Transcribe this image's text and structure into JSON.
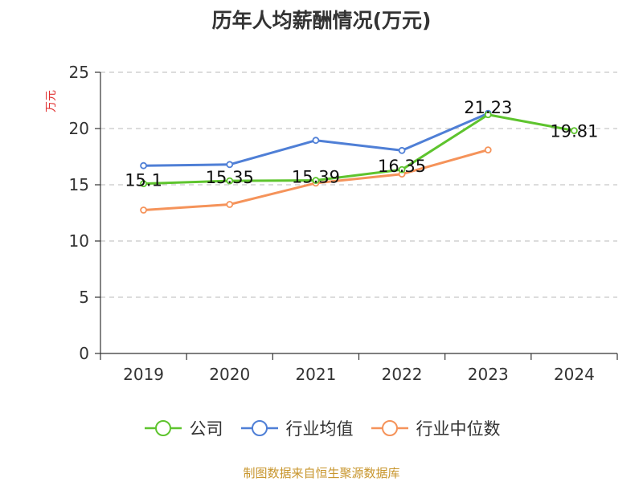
{
  "chart_data": {
    "type": "line",
    "title": "历年人均薪酬情况(万元)",
    "y_unit": "万元",
    "categories": [
      "2019",
      "2020",
      "2021",
      "2022",
      "2023",
      "2024"
    ],
    "ylim": [
      0,
      25
    ],
    "yticks": [
      "0",
      "5",
      "10",
      "15",
      "20",
      "25"
    ],
    "grid": true,
    "legend_position": "bottom",
    "series": [
      {
        "name": "公司",
        "color": "#5ec42e",
        "values": [
          15.1,
          15.35,
          15.39,
          16.35,
          21.23,
          19.81
        ],
        "labels": [
          "15.1",
          "15.35",
          "15.39",
          "16.35",
          "21.23",
          "19.81"
        ]
      },
      {
        "name": "行业均值",
        "color": "#4f7fd6",
        "values": [
          16.7,
          16.8,
          18.95,
          18.05,
          21.35,
          null
        ]
      },
      {
        "name": "行业中位数",
        "color": "#f5935a",
        "values": [
          12.75,
          13.25,
          15.15,
          15.95,
          18.1,
          null
        ]
      }
    ]
  },
  "source": "制图数据来自恒生聚源数据库"
}
